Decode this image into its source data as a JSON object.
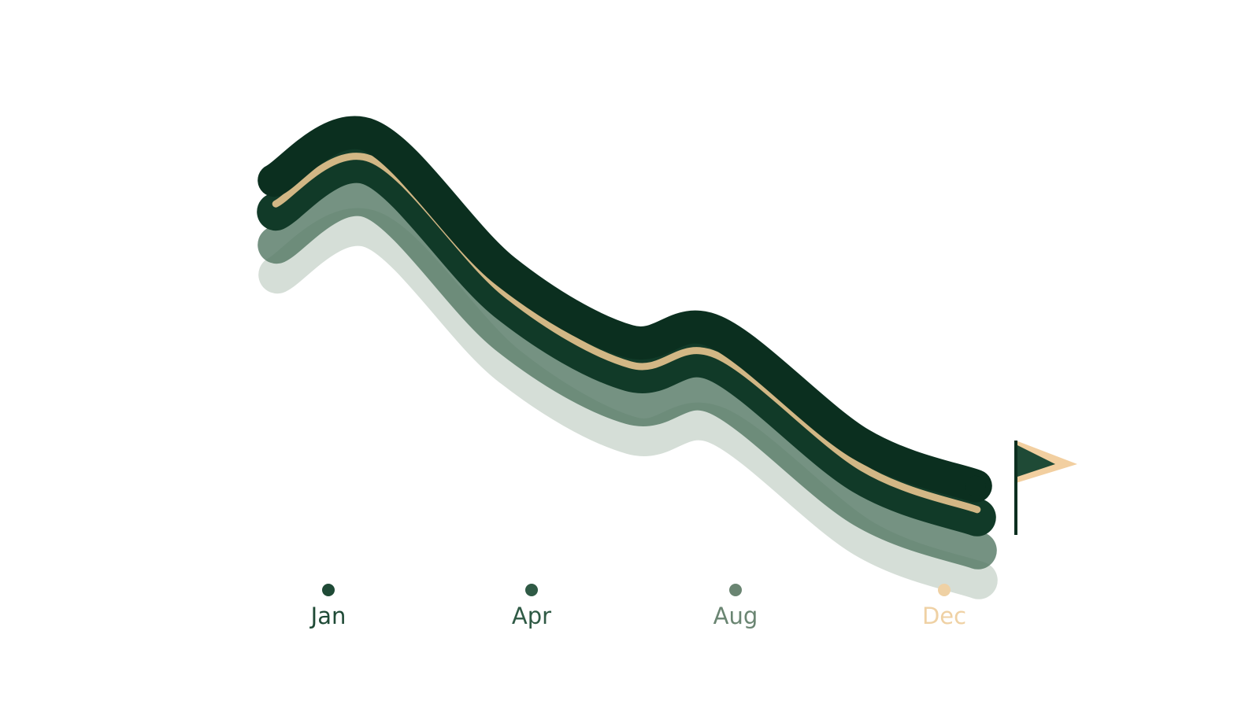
{
  "chart_data": {
    "type": "line",
    "title": "",
    "xlabel": "",
    "ylabel": "",
    "x_ticks": [
      {
        "label": "Jan",
        "month": 1,
        "color": "#1f4a36"
      },
      {
        "label": "Apr",
        "month": 4,
        "color": "#2f5a45"
      },
      {
        "label": "Aug",
        "month": 8,
        "color": "#6a8572"
      },
      {
        "label": "Dec",
        "month": 12,
        "color": "#efd1a4"
      }
    ],
    "axis_gradient": [
      "#0f3524",
      "#5b7a64",
      "#f3d9b1"
    ],
    "series": [
      {
        "role": "main",
        "color": "#0b2f1f",
        "points": [
          [
            0.2,
            0.64
          ],
          [
            1.6,
            0.78
          ],
          [
            3.6,
            0.36
          ],
          [
            5.9,
            0.14
          ],
          [
            7.6,
            0.17
          ],
          [
            10.4,
            -0.18
          ],
          [
            12.6,
            -0.31
          ]
        ]
      },
      {
        "role": "echo-1",
        "color": "#113a28"
      },
      {
        "role": "echo-2",
        "color": "#527763"
      },
      {
        "role": "echo-3",
        "color": "#c7d3ca"
      },
      {
        "role": "accent",
        "color": "#e8c58f"
      }
    ],
    "end_marker": {
      "type": "flag",
      "month": 12.6,
      "fill": "#1f4a36",
      "outline": "#f2cfa0"
    },
    "grid": false,
    "legend": "none"
  }
}
